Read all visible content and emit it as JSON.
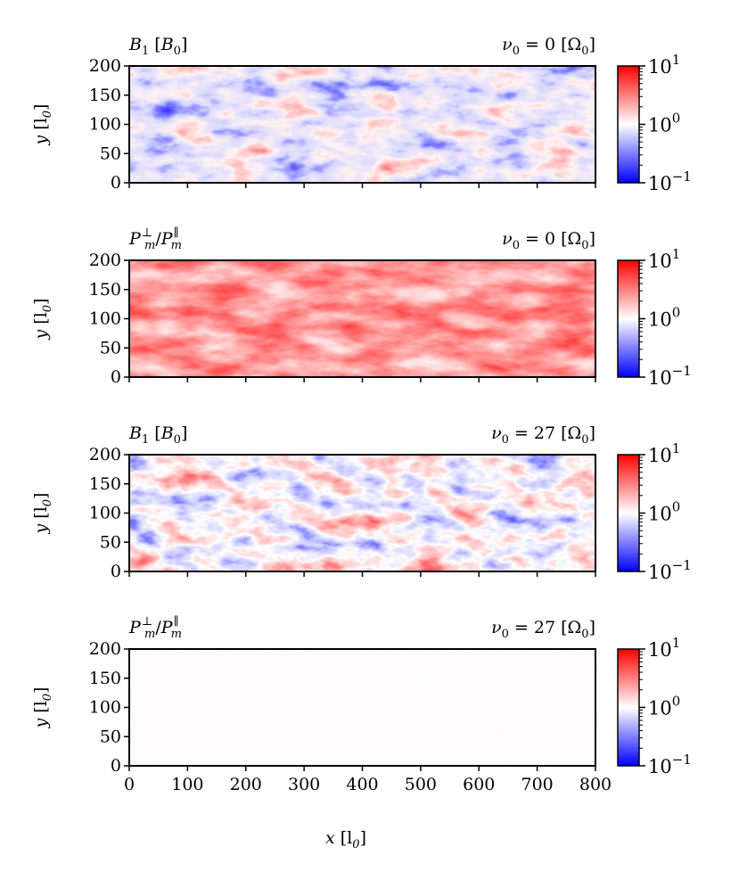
{
  "chart_data": [
    {
      "type": "heatmap",
      "title": "B_1 [B_0]",
      "annotation": "ν_0 = 0 [Ω_0]",
      "xlabel": "",
      "ylabel": "y [l_0]",
      "xlim": [
        0,
        800
      ],
      "ylim": [
        0,
        200
      ],
      "xticks": [],
      "yticks": [
        "0",
        "50",
        "100",
        "150",
        "200"
      ],
      "colorbar": {
        "scale": "log",
        "range": [
          0.1,
          10
        ],
        "ticks": [
          "10⁻¹",
          "10⁰",
          "10¹"
        ],
        "colormap": "bwr"
      },
      "field_summary": "turbulent, mostly below unity (blue) with red filaments"
    },
    {
      "type": "heatmap",
      "title": "P_m^⊥ / P_m^∥",
      "annotation": "ν_0 = 0 [Ω_0]",
      "xlabel": "",
      "ylabel": "y [l_0]",
      "xlim": [
        0,
        800
      ],
      "ylim": [
        0,
        200
      ],
      "xticks": [],
      "yticks": [
        "0",
        "50",
        "100",
        "150",
        "200"
      ],
      "colorbar": {
        "scale": "log",
        "range": [
          0.1,
          10
        ],
        "ticks": [
          "10⁻¹",
          "10⁰",
          "10¹"
        ],
        "colormap": "bwr"
      },
      "field_summary": "mostly above unity (red), anisotropic"
    },
    {
      "type": "heatmap",
      "title": "B_1 [B_0]",
      "annotation": "ν_0 = 27 [Ω_0]",
      "xlabel": "",
      "ylabel": "y [l_0]",
      "xlim": [
        0,
        800
      ],
      "ylim": [
        0,
        200
      ],
      "xticks": [],
      "yticks": [
        "0",
        "50",
        "100",
        "150",
        "200"
      ],
      "colorbar": {
        "scale": "log",
        "range": [
          0.1,
          10
        ],
        "ticks": [
          "10⁻¹",
          "10⁰",
          "10¹"
        ],
        "colormap": "bwr"
      },
      "field_summary": "mixed red and blue structures around unity"
    },
    {
      "type": "heatmap",
      "title": "P_m^⊥ / P_m^∥",
      "annotation": "ν_0 = 27 [Ω_0]",
      "xlabel": "x [l_0]",
      "ylabel": "y [l_0]",
      "xlim": [
        0,
        800
      ],
      "ylim": [
        0,
        200
      ],
      "xticks": [
        "0",
        "100",
        "200",
        "300",
        "400",
        "500",
        "600",
        "700",
        "800"
      ],
      "yticks": [
        "0",
        "50",
        "100",
        "150",
        "200"
      ],
      "colorbar": {
        "scale": "log",
        "range": [
          0.1,
          10
        ],
        "ticks": [
          "10⁻¹",
          "10⁰",
          "10¹"
        ],
        "colormap": "bwr"
      },
      "field_summary": "nearly isotropic noise around unity"
    }
  ],
  "labels": {
    "b1_title": "B",
    "b1_sub": "1",
    "b1_unit_open": "[B",
    "b1_unit_sub": "0",
    "b1_unit_close": "]",
    "pm_title_P": "P",
    "pm_sub_m": "m",
    "pm_sup_perp": "⊥",
    "pm_slash": "/",
    "pm_sup_par": "∥",
    "nu_symbol": "ν",
    "nu_sub": "0",
    "nu0_value_a": " = 0 [Ω",
    "nu0_value_b": " = 27 [Ω",
    "omega_sub": "0",
    "close_bracket": "]",
    "ylabel_y": "y",
    "ylabel_unit": "[l",
    "ylabel_sub": "0",
    "xlabel_x": "x",
    "cb_base": "10",
    "cb_exp_m1": "−1",
    "cb_exp_0": "0",
    "cb_exp_1": "1"
  },
  "colors": {
    "blue": "#0000ff",
    "white": "#ffffff",
    "red": "#ff0000"
  }
}
